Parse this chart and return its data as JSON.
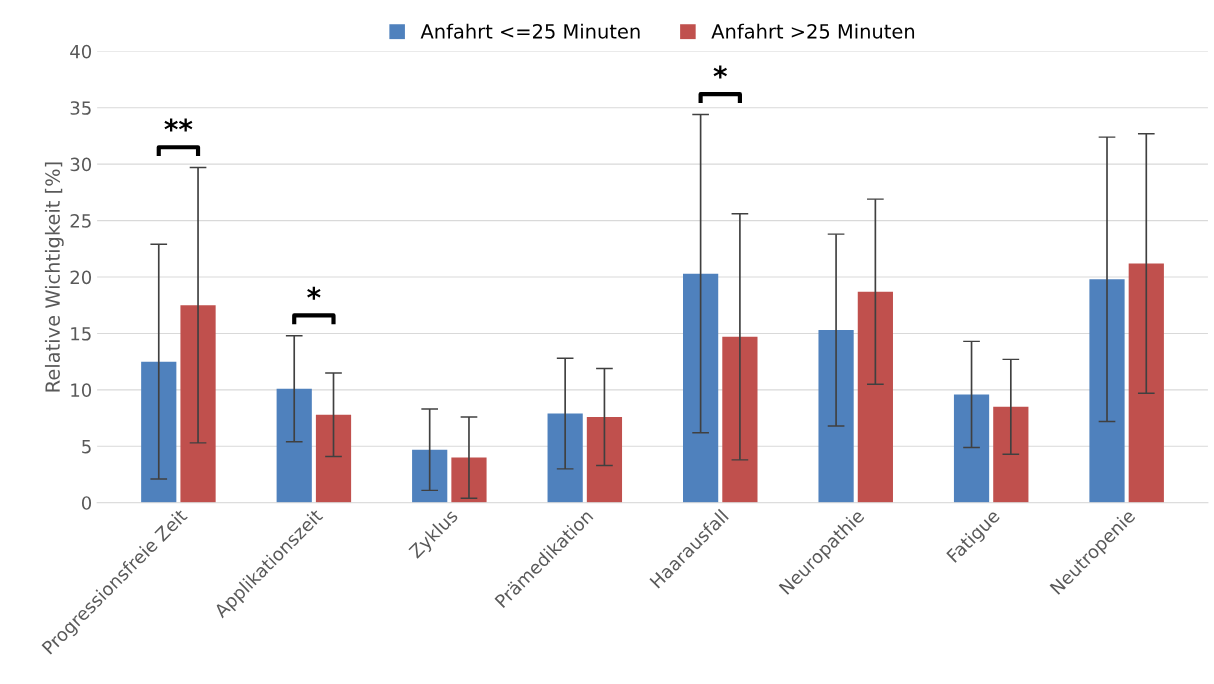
{
  "chart_data": {
    "type": "bar",
    "ylabel": "Relative Wichtigkeit [%]",
    "categories": [
      "Progressionsfreie Zeit",
      "Applikationszeit",
      "Zyklus",
      "Prämedikation",
      "Haarausfall",
      "Neuropathie",
      "Fatigue",
      "Neutropenie"
    ],
    "series": [
      {
        "name": "Anfahrt <=25 Minuten",
        "color": "#4f81bd",
        "values": [
          12.5,
          10.1,
          4.7,
          7.9,
          20.3,
          15.3,
          9.6,
          19.8
        ],
        "errors": [
          10.4,
          4.7,
          3.6,
          4.9,
          14.1,
          8.5,
          4.7,
          12.6
        ]
      },
      {
        "name": "Anfahrt >25 Minuten",
        "color": "#c0504d",
        "values": [
          17.5,
          7.8,
          4.0,
          7.6,
          14.7,
          18.7,
          8.5,
          21.2
        ],
        "errors": [
          12.2,
          3.7,
          3.6,
          4.3,
          10.9,
          8.2,
          4.2,
          11.5
        ]
      }
    ],
    "ylim": [
      0,
      40
    ],
    "yticks": [
      0,
      5,
      10,
      15,
      20,
      25,
      30,
      35,
      40
    ],
    "grid": "y",
    "legend": "top",
    "annotations": [
      "**",
      "*",
      "*"
    ]
  }
}
